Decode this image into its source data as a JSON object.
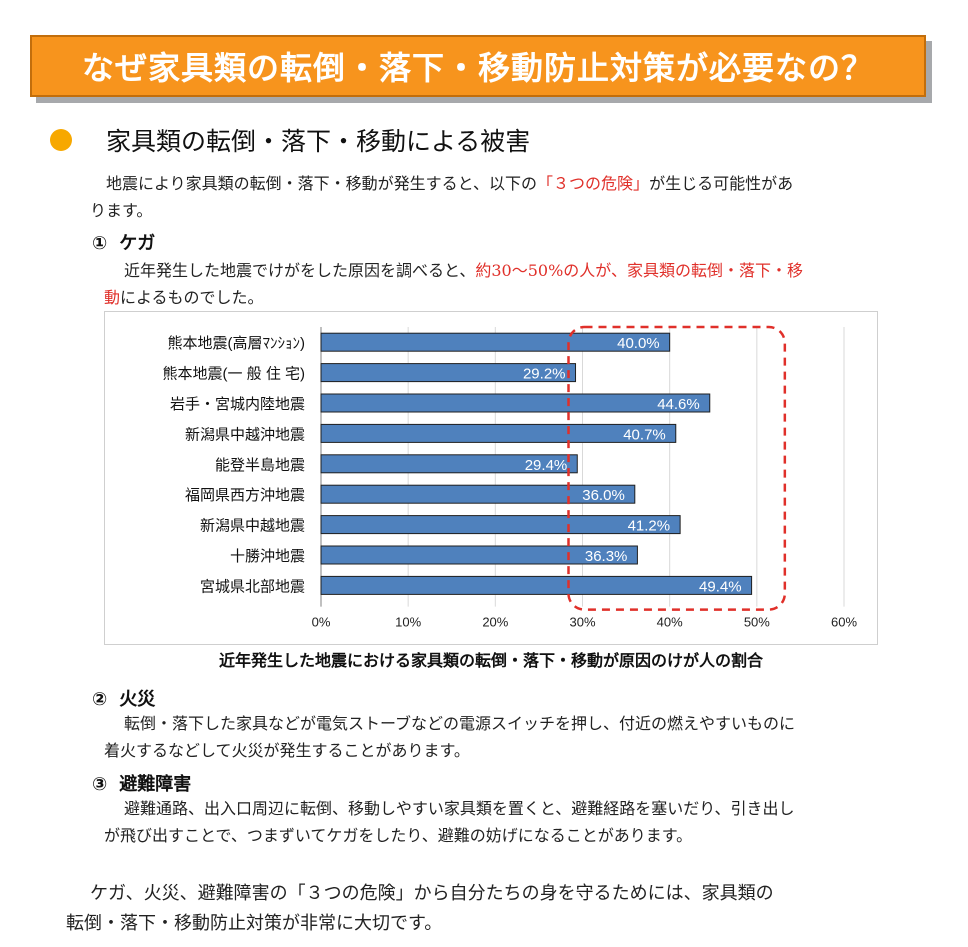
{
  "banner": {
    "title": "なぜ家具類の転倒・落下・移動防止対策が必要なの？"
  },
  "section": {
    "title": "家具類の転倒・落下・移動による被害"
  },
  "intro": {
    "line1_a": "地震により家具類の転倒・落下・移動が発生すると、以下の",
    "line1_red": "「３つの危険」",
    "line1_b": "が生じる可能性があ",
    "line2": "ります。"
  },
  "item1": {
    "number": "①",
    "title": "ケガ",
    "line1_a": "近年発生した地震でけがをした原因を調べると、",
    "line1_red": "約30〜50%の人が、家具類の転倒・落下・移",
    "line2_red": "動",
    "line2_b": "によるものでした。"
  },
  "chart_data": {
    "type": "bar",
    "orientation": "horizontal",
    "categories": [
      "熊本地震(高層ﾏﾝｼｮﾝ)",
      "熊本地震(一 般 住 宅)",
      "岩手・宮城内陸地震",
      "新潟県中越沖地震",
      "能登半島地震",
      "福岡県西方沖地震",
      "新潟県中越地震",
      "十勝沖地震",
      "宮城県北部地震"
    ],
    "values": [
      40.0,
      29.2,
      44.6,
      40.7,
      29.4,
      36.0,
      41.2,
      36.3,
      49.4
    ],
    "value_labels": [
      "40.0%",
      "29.2%",
      "44.6%",
      "40.7%",
      "29.4%",
      "36.0%",
      "41.2%",
      "36.3%",
      "49.4%"
    ],
    "xlim": [
      0,
      60
    ],
    "xticks": [
      "0%",
      "10%",
      "20%",
      "30%",
      "40%",
      "50%",
      "60%"
    ],
    "grid": true,
    "bar_color": "#4f81bd",
    "highlight_range": [
      30,
      50
    ],
    "highlight_color": "#e0302a",
    "title": "近年発生した地震における家具類の転倒・落下・移動が原因のけが人の割合"
  },
  "item2": {
    "number": "②",
    "title": "火災",
    "line1": "転倒・落下した家具などが電気ストーブなどの電源スイッチを押し、付近の燃えやすいものに",
    "line2": "着火するなどして火災が発生することがあります。"
  },
  "item3": {
    "number": "③",
    "title": "避難障害",
    "line1": "避難通路、出入口周辺に転倒、移動しやすい家具類を置くと、避難経路を塞いだり、引き出し",
    "line2": "が飛び出すことで、つまずいてケガをしたり、避難の妨げになることがあります。"
  },
  "conclusion": {
    "line1": "ケガ、火災、避難障害の「３つの危険」から自分たちの身を守るためには、家具類の",
    "line2": "転倒・落下・移動防止対策が非常に大切です。"
  }
}
